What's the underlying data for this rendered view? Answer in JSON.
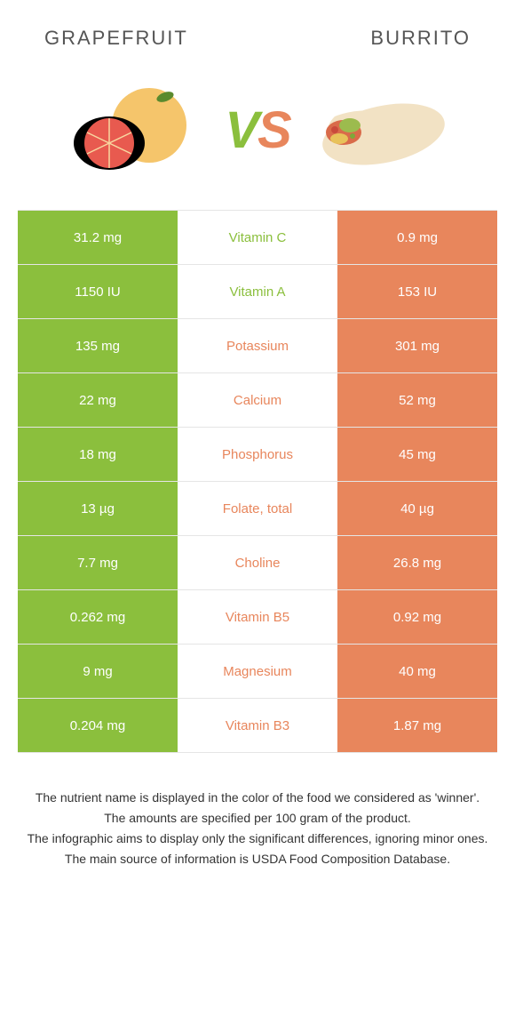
{
  "header": {
    "left": "GRAPEFRUIT",
    "right": "BURRITO"
  },
  "vs": {
    "v": "V",
    "s": "S"
  },
  "colors": {
    "green": "#8bbf3d",
    "orange": "#e8865c",
    "row_border": "#e5e5e5",
    "text": "#333333",
    "bg": "#ffffff"
  },
  "table": {
    "left_color": "green",
    "right_color": "orange",
    "rows": [
      {
        "left": "31.2 mg",
        "label": "Vitamin C",
        "right": "0.9 mg",
        "winner": "green"
      },
      {
        "left": "1150 IU",
        "label": "Vitamin A",
        "right": "153 IU",
        "winner": "green"
      },
      {
        "left": "135 mg",
        "label": "Potassium",
        "right": "301 mg",
        "winner": "orange"
      },
      {
        "left": "22 mg",
        "label": "Calcium",
        "right": "52 mg",
        "winner": "orange"
      },
      {
        "left": "18 mg",
        "label": "Phosphorus",
        "right": "45 mg",
        "winner": "orange"
      },
      {
        "left": "13 µg",
        "label": "Folate, total",
        "right": "40 µg",
        "winner": "orange"
      },
      {
        "left": "7.7 mg",
        "label": "Choline",
        "right": "26.8 mg",
        "winner": "orange"
      },
      {
        "left": "0.262 mg",
        "label": "Vitamin B5",
        "right": "0.92 mg",
        "winner": "orange"
      },
      {
        "left": "9 mg",
        "label": "Magnesium",
        "right": "40 mg",
        "winner": "orange"
      },
      {
        "left": "0.204 mg",
        "label": "Vitamin B3",
        "right": "1.87 mg",
        "winner": "orange"
      }
    ]
  },
  "footnotes": [
    "The nutrient name is displayed in the color of the food we considered as 'winner'.",
    "The amounts are specified per 100 gram of the product.",
    "The infographic aims to display only the significant differences, ignoring minor ones.",
    "The main source of information is USDA Food Composition Database."
  ]
}
